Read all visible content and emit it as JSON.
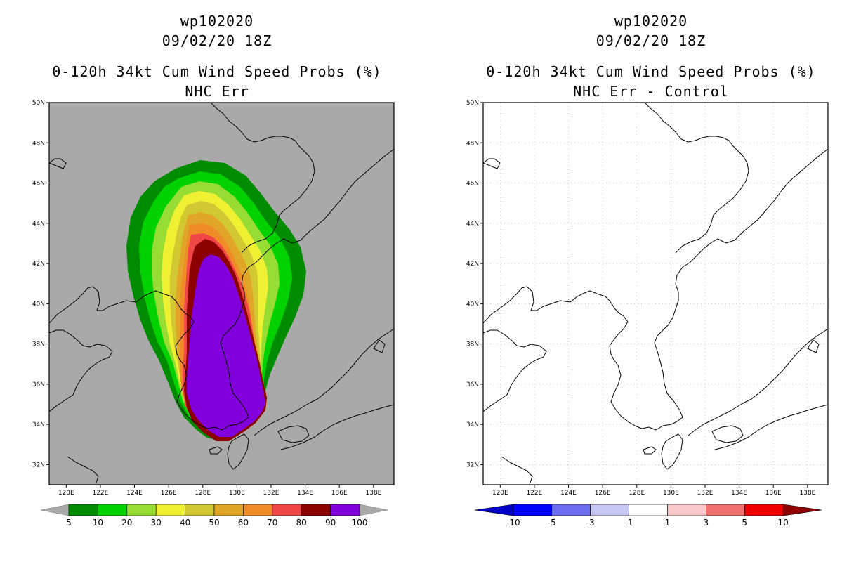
{
  "left_panel": {
    "title_line1": "wp102020",
    "title_line2": "09/02/20 18Z",
    "title_line3": "0-120h 34kt Cum Wind Speed Probs (%)",
    "title_line4": "NHC Err",
    "background_color": "#a9a9a9",
    "colorbar": {
      "colors": [
        "#008c00",
        "#00d200",
        "#96dc32",
        "#f0f032",
        "#d2c832",
        "#e1a528",
        "#f08c28",
        "#f04646",
        "#8c0000",
        "#8200dc"
      ],
      "labels": [
        "5",
        "10",
        "20",
        "30",
        "40",
        "50",
        "60",
        "70",
        "80",
        "90",
        "100"
      ]
    }
  },
  "right_panel": {
    "title_line1": "wp102020",
    "title_line2": "09/02/20 18Z",
    "title_line3": "0-120h 34kt Cum Wind Speed Probs (%)",
    "title_line4": "NHC Err - Control",
    "background_color": "#ffffff",
    "colorbar": {
      "colors": [
        "#0000c8",
        "#0000ff",
        "#6e6ef0",
        "#c8c8f5",
        "#ffffff",
        "#fac8c8",
        "#f07070",
        "#f00000",
        "#8c0000"
      ],
      "labels": [
        "-10",
        "-5",
        "-3",
        "-1",
        "1",
        "3",
        "5",
        "10"
      ]
    }
  },
  "axes": {
    "lon_labels": [
      "120E",
      "122E",
      "124E",
      "126E",
      "128E",
      "130E",
      "132E",
      "134E",
      "136E",
      "138E"
    ],
    "lat_labels": [
      "50N",
      "48N",
      "46N",
      "44N",
      "42N",
      "40N",
      "38N",
      "36N",
      "34N",
      "32N"
    ]
  },
  "probability_contours": [
    {
      "level": 5,
      "color": "#008c00"
    },
    {
      "level": 10,
      "color": "#00d200"
    },
    {
      "level": 20,
      "color": "#96dc32"
    },
    {
      "level": 30,
      "color": "#f0f032"
    },
    {
      "level": 40,
      "color": "#d2c832"
    },
    {
      "level": 50,
      "color": "#e1a528"
    },
    {
      "level": 60,
      "color": "#f08c28"
    },
    {
      "level": 70,
      "color": "#f04646"
    },
    {
      "level": 80,
      "color": "#8c0000"
    },
    {
      "level": 90,
      "color": "#8200dc"
    }
  ]
}
